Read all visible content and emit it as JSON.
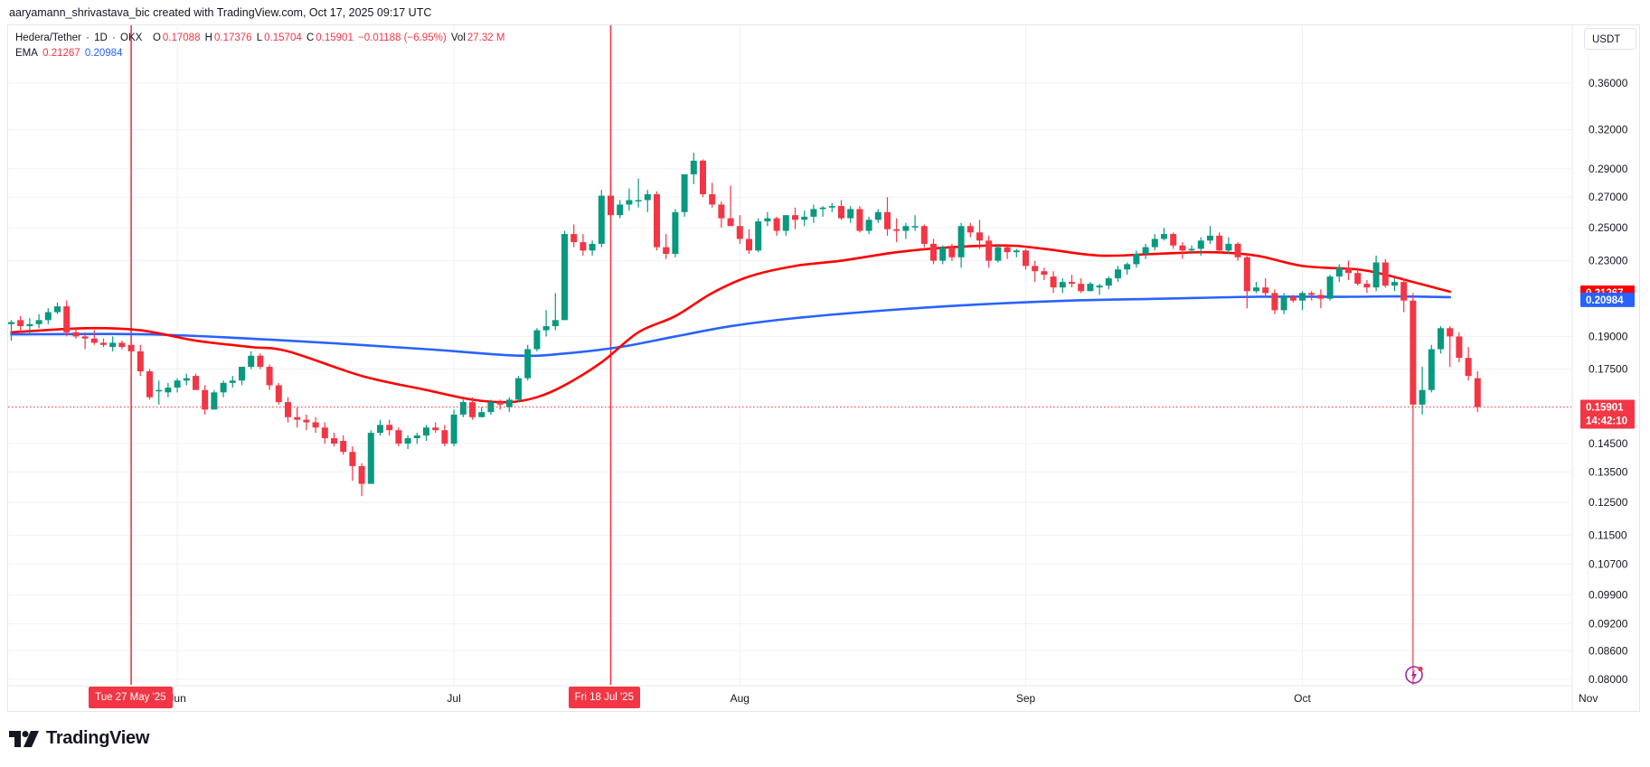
{
  "credit": "aaryamann_shrivastava_bic created with TradingView.com, Oct 17, 2025 09:17 UTC",
  "legend": {
    "symbol": "Hedera/Tether",
    "interval": "1D",
    "exchange": "OKX",
    "open_label": "O",
    "open": "0.17088",
    "high_label": "H",
    "high": "0.17376",
    "low_label": "L",
    "low": "0.15704",
    "close_label": "C",
    "close": "0.15901",
    "change": "−0.01188 (−6.95%)",
    "vol_label": "Vol",
    "vol": "27.32 M",
    "ema_label": "EMA",
    "ema_fast": "0.21267",
    "ema_slow": "0.20984"
  },
  "currency": "USDT",
  "price_tags": {
    "ema_fast": {
      "value": "0.21267",
      "color": "#ff0000"
    },
    "ema_slow": {
      "value": "0.20984",
      "color": "#2962ff"
    },
    "last": {
      "value": "0.15901",
      "countdown": "14:42:10",
      "color": "#f23645"
    }
  },
  "date_tags": [
    {
      "label": "Tue 27 May '25"
    },
    {
      "label": "Fri 18 Jul '25"
    }
  ],
  "brand": "TradingView",
  "colors": {
    "up": "#089981",
    "down": "#f23645",
    "ema_fast": "#ff0000",
    "ema_slow": "#2962ff",
    "grid": "#f0f1f3",
    "marker": "#f23645",
    "bolt": "#9c27b0"
  },
  "chart_data": {
    "type": "candlestick",
    "title": "Hedera/Tether · 1D · OKX",
    "xlabel": "",
    "ylabel": "USDT",
    "scale": "log",
    "ylim": [
      0.08,
      0.38
    ],
    "grid": true,
    "y_ticks": [
      0.36,
      0.32,
      0.29,
      0.27,
      0.25,
      0.23,
      0.19,
      0.175,
      0.145,
      0.135,
      0.125,
      0.115,
      0.107,
      0.099,
      0.092,
      0.086,
      0.08
    ],
    "y_tick_labels": [
      "0.36000",
      "0.32000",
      "0.29000",
      "0.27000",
      "0.25000",
      "0.23000",
      "0.19000",
      "0.17500",
      "0.14500",
      "0.13500",
      "0.12500",
      "0.11500",
      "0.10700",
      "0.09900",
      "0.09200",
      "0.08600",
      "0.08000"
    ],
    "x_ticks": [
      {
        "label": "Jun",
        "day": 18
      },
      {
        "label": "Jul",
        "day": 48
      },
      {
        "label": "Aug",
        "day": 79
      },
      {
        "label": "Sep",
        "day": 110
      },
      {
        "label": "Oct",
        "day": 140
      },
      {
        "label": "Nov",
        "day": 171
      }
    ],
    "start_date": "2025-05-14",
    "markers": [
      {
        "date": "2025-05-27",
        "day": 13,
        "label": "Tue 27 May '25"
      },
      {
        "date": "2025-07-18",
        "day": 65,
        "label": "Fri 18 Jul '25"
      }
    ],
    "last_price": 0.15901,
    "ema_fast_last": 0.21267,
    "ema_slow_last": 0.20984,
    "candles_ohlc": [
      [
        0.196,
        0.198,
        0.188,
        0.197
      ],
      [
        0.198,
        0.2,
        0.192,
        0.195
      ],
      [
        0.195,
        0.199,
        0.191,
        0.196
      ],
      [
        0.196,
        0.201,
        0.194,
        0.198
      ],
      [
        0.198,
        0.204,
        0.196,
        0.202
      ],
      [
        0.202,
        0.207,
        0.201,
        0.205
      ],
      [
        0.205,
        0.208,
        0.19,
        0.192
      ],
      [
        0.192,
        0.194,
        0.189,
        0.19
      ],
      [
        0.19,
        0.192,
        0.184,
        0.189
      ],
      [
        0.189,
        0.193,
        0.186,
        0.187
      ],
      [
        0.187,
        0.189,
        0.185,
        0.186
      ],
      [
        0.185,
        0.19,
        0.183,
        0.187
      ],
      [
        0.187,
        0.188,
        0.184,
        0.185
      ],
      [
        0.186,
        0.187,
        0.182,
        0.183
      ],
      [
        0.183,
        0.186,
        0.172,
        0.174
      ],
      [
        0.174,
        0.175,
        0.162,
        0.163
      ],
      [
        0.166,
        0.17,
        0.16,
        0.166
      ],
      [
        0.165,
        0.169,
        0.163,
        0.167
      ],
      [
        0.167,
        0.171,
        0.165,
        0.17
      ],
      [
        0.17,
        0.173,
        0.168,
        0.171
      ],
      [
        0.172,
        0.173,
        0.166,
        0.166
      ],
      [
        0.166,
        0.168,
        0.156,
        0.158
      ],
      [
        0.158,
        0.166,
        0.158,
        0.165
      ],
      [
        0.165,
        0.17,
        0.163,
        0.169
      ],
      [
        0.169,
        0.172,
        0.167,
        0.17
      ],
      [
        0.17,
        0.175,
        0.168,
        0.176
      ],
      [
        0.176,
        0.183,
        0.175,
        0.181
      ],
      [
        0.181,
        0.182,
        0.175,
        0.176
      ],
      [
        0.176,
        0.177,
        0.166,
        0.168
      ],
      [
        0.168,
        0.169,
        0.16,
        0.161
      ],
      [
        0.161,
        0.163,
        0.153,
        0.155
      ],
      [
        0.155,
        0.159,
        0.151,
        0.154
      ],
      [
        0.154,
        0.156,
        0.15,
        0.153
      ],
      [
        0.153,
        0.155,
        0.149,
        0.151
      ],
      [
        0.151,
        0.153,
        0.145,
        0.147
      ],
      [
        0.147,
        0.149,
        0.144,
        0.145
      ],
      [
        0.146,
        0.148,
        0.141,
        0.142
      ],
      [
        0.142,
        0.144,
        0.132,
        0.137
      ],
      [
        0.137,
        0.138,
        0.127,
        0.131
      ],
      [
        0.131,
        0.15,
        0.131,
        0.149
      ],
      [
        0.149,
        0.154,
        0.148,
        0.152
      ],
      [
        0.152,
        0.154,
        0.148,
        0.15
      ],
      [
        0.15,
        0.151,
        0.144,
        0.145
      ],
      [
        0.145,
        0.148,
        0.143,
        0.147
      ],
      [
        0.147,
        0.149,
        0.145,
        0.148
      ],
      [
        0.148,
        0.152,
        0.146,
        0.151
      ],
      [
        0.151,
        0.153,
        0.149,
        0.15
      ],
      [
        0.15,
        0.152,
        0.144,
        0.145
      ],
      [
        0.145,
        0.158,
        0.144,
        0.156
      ],
      [
        0.156,
        0.162,
        0.155,
        0.161
      ],
      [
        0.161,
        0.163,
        0.154,
        0.155
      ],
      [
        0.155,
        0.159,
        0.155,
        0.157
      ],
      [
        0.157,
        0.162,
        0.156,
        0.161
      ],
      [
        0.161,
        0.162,
        0.158,
        0.16
      ],
      [
        0.159,
        0.163,
        0.157,
        0.162
      ],
      [
        0.162,
        0.172,
        0.161,
        0.171
      ],
      [
        0.171,
        0.186,
        0.17,
        0.184
      ],
      [
        0.184,
        0.194,
        0.183,
        0.193
      ],
      [
        0.193,
        0.203,
        0.19,
        0.195
      ],
      [
        0.195,
        0.212,
        0.193,
        0.198
      ],
      [
        0.198,
        0.248,
        0.198,
        0.246
      ],
      [
        0.246,
        0.252,
        0.238,
        0.241
      ],
      [
        0.241,
        0.246,
        0.233,
        0.236
      ],
      [
        0.236,
        0.242,
        0.233,
        0.24
      ],
      [
        0.24,
        0.275,
        0.238,
        0.271
      ],
      [
        0.271,
        0.283,
        0.254,
        0.258
      ],
      [
        0.258,
        0.268,
        0.256,
        0.265
      ],
      [
        0.265,
        0.276,
        0.261,
        0.268
      ],
      [
        0.268,
        0.283,
        0.263,
        0.268
      ],
      [
        0.268,
        0.275,
        0.26,
        0.272
      ],
      [
        0.272,
        0.274,
        0.236,
        0.238
      ],
      [
        0.238,
        0.246,
        0.231,
        0.234
      ],
      [
        0.234,
        0.262,
        0.232,
        0.26
      ],
      [
        0.26,
        0.285,
        0.257,
        0.286
      ],
      [
        0.286,
        0.302,
        0.279,
        0.296
      ],
      [
        0.296,
        0.297,
        0.27,
        0.272
      ],
      [
        0.272,
        0.28,
        0.263,
        0.265
      ],
      [
        0.265,
        0.267,
        0.25,
        0.256
      ],
      [
        0.256,
        0.278,
        0.252,
        0.251
      ],
      [
        0.251,
        0.258,
        0.24,
        0.243
      ],
      [
        0.243,
        0.249,
        0.234,
        0.236
      ],
      [
        0.236,
        0.256,
        0.235,
        0.254
      ],
      [
        0.254,
        0.26,
        0.251,
        0.256
      ],
      [
        0.256,
        0.257,
        0.245,
        0.248
      ],
      [
        0.248,
        0.258,
        0.245,
        0.258
      ],
      [
        0.258,
        0.263,
        0.249,
        0.255
      ],
      [
        0.255,
        0.261,
        0.251,
        0.257
      ],
      [
        0.257,
        0.265,
        0.253,
        0.262
      ],
      [
        0.262,
        0.264,
        0.257,
        0.263
      ],
      [
        0.263,
        0.266,
        0.26,
        0.264
      ],
      [
        0.264,
        0.268,
        0.255,
        0.256
      ],
      [
        0.256,
        0.264,
        0.253,
        0.262
      ],
      [
        0.262,
        0.264,
        0.247,
        0.248
      ],
      [
        0.248,
        0.257,
        0.246,
        0.255
      ],
      [
        0.255,
        0.262,
        0.253,
        0.26
      ],
      [
        0.26,
        0.27,
        0.245,
        0.249
      ],
      [
        0.249,
        0.256,
        0.241,
        0.248
      ],
      [
        0.248,
        0.253,
        0.243,
        0.251
      ],
      [
        0.251,
        0.258,
        0.248,
        0.251
      ],
      [
        0.251,
        0.252,
        0.238,
        0.24
      ],
      [
        0.24,
        0.243,
        0.228,
        0.23
      ],
      [
        0.23,
        0.239,
        0.228,
        0.238
      ],
      [
        0.238,
        0.24,
        0.23,
        0.232
      ],
      [
        0.232,
        0.253,
        0.226,
        0.251
      ],
      [
        0.251,
        0.253,
        0.244,
        0.247
      ],
      [
        0.247,
        0.255,
        0.237,
        0.242
      ],
      [
        0.242,
        0.245,
        0.226,
        0.23
      ],
      [
        0.23,
        0.24,
        0.229,
        0.238
      ],
      [
        0.238,
        0.239,
        0.231,
        0.235
      ],
      [
        0.235,
        0.237,
        0.232,
        0.236
      ],
      [
        0.236,
        0.237,
        0.225,
        0.227
      ],
      [
        0.227,
        0.23,
        0.218,
        0.224
      ],
      [
        0.224,
        0.226,
        0.219,
        0.222
      ],
      [
        0.221,
        0.224,
        0.212,
        0.215
      ],
      [
        0.215,
        0.22,
        0.212,
        0.218
      ],
      [
        0.218,
        0.222,
        0.215,
        0.217
      ],
      [
        0.217,
        0.22,
        0.212,
        0.213
      ],
      [
        0.213,
        0.218,
        0.213,
        0.217
      ],
      [
        0.215,
        0.217,
        0.211,
        0.216
      ],
      [
        0.216,
        0.221,
        0.214,
        0.22
      ],
      [
        0.22,
        0.227,
        0.218,
        0.225
      ],
      [
        0.225,
        0.229,
        0.222,
        0.228
      ],
      [
        0.228,
        0.236,
        0.226,
        0.234
      ],
      [
        0.234,
        0.24,
        0.231,
        0.238
      ],
      [
        0.238,
        0.246,
        0.236,
        0.243
      ],
      [
        0.243,
        0.25,
        0.242,
        0.246
      ],
      [
        0.246,
        0.247,
        0.237,
        0.239
      ],
      [
        0.239,
        0.241,
        0.231,
        0.236
      ],
      [
        0.236,
        0.239,
        0.234,
        0.237
      ],
      [
        0.237,
        0.244,
        0.233,
        0.242
      ],
      [
        0.242,
        0.251,
        0.24,
        0.245
      ],
      [
        0.245,
        0.247,
        0.234,
        0.236
      ],
      [
        0.236,
        0.244,
        0.234,
        0.24
      ],
      [
        0.24,
        0.241,
        0.23,
        0.232
      ],
      [
        0.232,
        0.234,
        0.204,
        0.213
      ],
      [
        0.213,
        0.218,
        0.212,
        0.215
      ],
      [
        0.215,
        0.22,
        0.21,
        0.212
      ],
      [
        0.212,
        0.214,
        0.201,
        0.203
      ],
      [
        0.203,
        0.212,
        0.201,
        0.21
      ],
      [
        0.21,
        0.211,
        0.207,
        0.208
      ],
      [
        0.208,
        0.213,
        0.203,
        0.212
      ],
      [
        0.212,
        0.213,
        0.208,
        0.211
      ],
      [
        0.211,
        0.214,
        0.204,
        0.209
      ],
      [
        0.209,
        0.222,
        0.208,
        0.221
      ],
      [
        0.221,
        0.228,
        0.218,
        0.226
      ],
      [
        0.226,
        0.23,
        0.219,
        0.223
      ],
      [
        0.223,
        0.226,
        0.216,
        0.217
      ],
      [
        0.217,
        0.219,
        0.212,
        0.215
      ],
      [
        0.215,
        0.233,
        0.213,
        0.229
      ],
      [
        0.229,
        0.231,
        0.215,
        0.216
      ],
      [
        0.216,
        0.22,
        0.213,
        0.218
      ],
      [
        0.218,
        0.22,
        0.202,
        0.208
      ],
      [
        0.208,
        0.212,
        0.06,
        0.16
      ],
      [
        0.16,
        0.176,
        0.156,
        0.166
      ],
      [
        0.166,
        0.186,
        0.165,
        0.184
      ],
      [
        0.184,
        0.195,
        0.182,
        0.194
      ],
      [
        0.194,
        0.195,
        0.176,
        0.19
      ],
      [
        0.19,
        0.192,
        0.178,
        0.18
      ],
      [
        0.18,
        0.185,
        0.17,
        0.172
      ],
      [
        0.171,
        0.174,
        0.157,
        0.159
      ]
    ],
    "ema_fast_series": [
      [
        0,
        0.192
      ],
      [
        8,
        0.194
      ],
      [
        14,
        0.193
      ],
      [
        20,
        0.188
      ],
      [
        26,
        0.185
      ],
      [
        30,
        0.183
      ],
      [
        38,
        0.172
      ],
      [
        45,
        0.166
      ],
      [
        50,
        0.162
      ],
      [
        54,
        0.161
      ],
      [
        57,
        0.163
      ],
      [
        60,
        0.168
      ],
      [
        64,
        0.178
      ],
      [
        68,
        0.192
      ],
      [
        72,
        0.2
      ],
      [
        76,
        0.212
      ],
      [
        80,
        0.221
      ],
      [
        85,
        0.227
      ],
      [
        90,
        0.23
      ],
      [
        96,
        0.235
      ],
      [
        102,
        0.238
      ],
      [
        108,
        0.239
      ],
      [
        112,
        0.237
      ],
      [
        118,
        0.233
      ],
      [
        124,
        0.234
      ],
      [
        130,
        0.235
      ],
      [
        135,
        0.233
      ],
      [
        140,
        0.227
      ],
      [
        146,
        0.225
      ],
      [
        149,
        0.222
      ],
      [
        152,
        0.218
      ],
      [
        156,
        0.2127
      ]
    ],
    "ema_slow_series": [
      [
        0,
        0.191
      ],
      [
        15,
        0.191
      ],
      [
        30,
        0.188
      ],
      [
        45,
        0.184
      ],
      [
        55,
        0.181
      ],
      [
        60,
        0.182
      ],
      [
        66,
        0.185
      ],
      [
        72,
        0.19
      ],
      [
        78,
        0.195
      ],
      [
        85,
        0.199
      ],
      [
        95,
        0.203
      ],
      [
        105,
        0.206
      ],
      [
        115,
        0.208
      ],
      [
        125,
        0.209
      ],
      [
        135,
        0.21
      ],
      [
        145,
        0.21
      ],
      [
        150,
        0.2102
      ],
      [
        156,
        0.2098
      ]
    ]
  }
}
